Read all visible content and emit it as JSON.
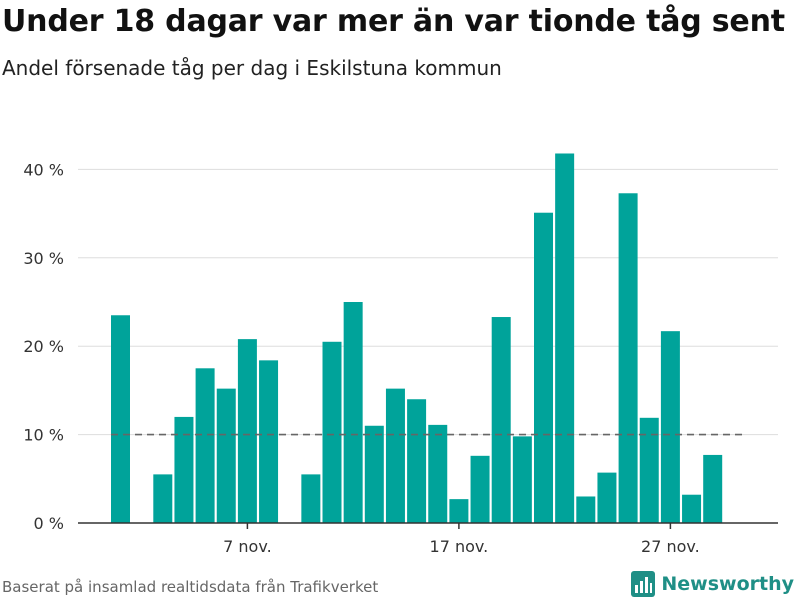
{
  "header": {
    "title": "Under 18 dagar var mer än var tionde tåg sent",
    "subtitle": "Andel försenade tåg per dag i Eskilstuna kommun"
  },
  "footer": {
    "source": "Baserat på insamlad realtidsdata från Trafikverket",
    "brand": "Newsworthy",
    "logo_icon": "newsworthy-logo-icon"
  },
  "colors": {
    "bar": "#00a39a",
    "reference_line": "#666666",
    "grid": "#dddddd",
    "brand": "#1f8f86"
  },
  "chart_data": {
    "type": "bar",
    "x_unit": "day of November",
    "categories": [
      1,
      2,
      3,
      4,
      5,
      6,
      7,
      8,
      9,
      10,
      11,
      12,
      13,
      14,
      15,
      16,
      17,
      18,
      19,
      20,
      21,
      22,
      23,
      24,
      25,
      26,
      27,
      28,
      29,
      30
    ],
    "values": [
      23.5,
      null,
      5.5,
      12,
      17.5,
      15.2,
      20.8,
      18.4,
      null,
      5.5,
      20.5,
      25,
      11,
      15.2,
      14,
      11.1,
      2.7,
      7.6,
      23.3,
      9.8,
      35.1,
      41.8,
      3,
      5.7,
      37.3,
      11.9,
      21.7,
      3.2,
      7.7,
      null
    ],
    "ylim": [
      0,
      45
    ],
    "yticks": [
      0,
      10,
      20,
      30,
      40
    ],
    "ytick_labels": [
      "0 %",
      "10 %",
      "20 %",
      "30 %",
      "40 %"
    ],
    "xticks": [
      7,
      17,
      27
    ],
    "xtick_labels": [
      "7 nov.",
      "17 nov.",
      "27 nov."
    ],
    "reference_line": {
      "value": 10,
      "style": "dashed"
    },
    "grid": "horizontal",
    "legend": "none"
  }
}
